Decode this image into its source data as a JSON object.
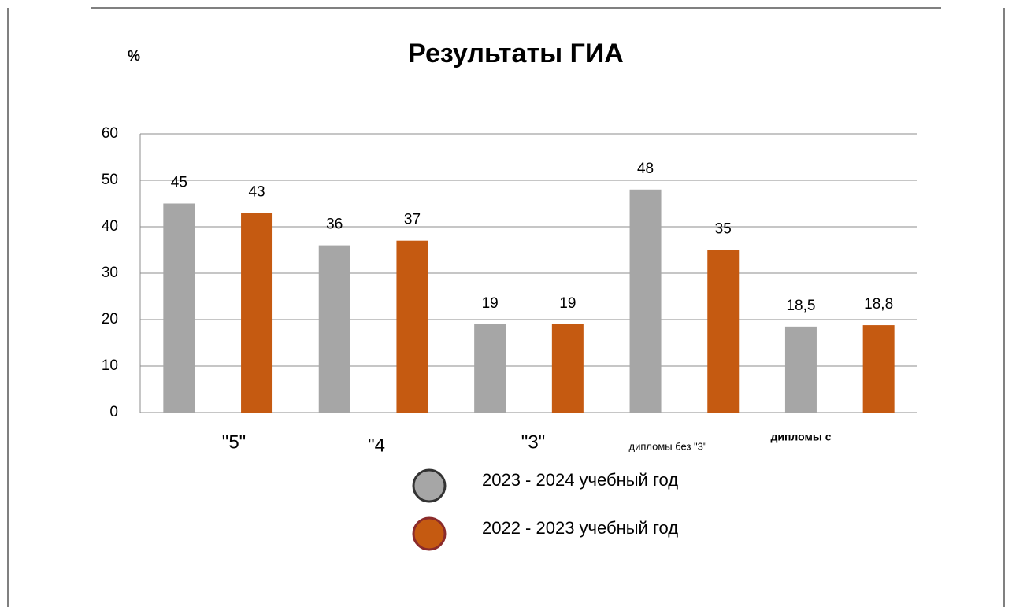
{
  "chart_data": {
    "type": "bar",
    "title": "Результаты ГИА",
    "y_label": "%",
    "categories": [
      "\"5\"",
      "\"4",
      "\"3\"",
      "дипломы без \"3\"",
      "дипломы с"
    ],
    "series": [
      {
        "name": "2023 - 2024 учебный год",
        "color": "#a6a6a6",
        "values": [
          45,
          36,
          19,
          48,
          18.5
        ],
        "value_labels": [
          "45",
          "36",
          "19",
          "48",
          "18,5"
        ]
      },
      {
        "name": "2022 - 2023 учебный год",
        "color": "#c55a11",
        "values": [
          43,
          37,
          19,
          35,
          18.8
        ],
        "value_labels": [
          "43",
          "37",
          "19",
          "35",
          "18,8"
        ]
      }
    ],
    "ylim": [
      0,
      60
    ],
    "yticks": [
      0,
      10,
      20,
      30,
      40,
      50,
      60
    ],
    "grid": true
  }
}
